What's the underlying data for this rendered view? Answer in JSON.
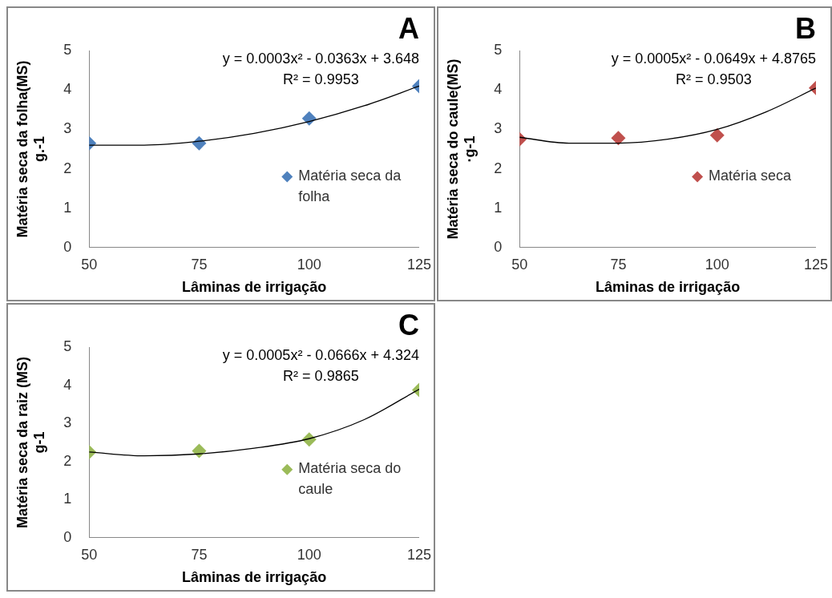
{
  "chart_data": [
    {
      "type": "scatter",
      "title": "A",
      "xlabel": "Lâminas de irrigação",
      "ylabel": "Matéria seca da folha(MS)\ng.-1",
      "xlim": [
        50,
        125
      ],
      "xticks": [
        50,
        75,
        100,
        125
      ],
      "ylim": [
        0,
        5
      ],
      "yticks": [
        0,
        1,
        2,
        3,
        4,
        5
      ],
      "grid": false,
      "legend": "right",
      "marker": "diamond",
      "annotations": [
        "y = 0.0003x² - 0.0363x + 3.648",
        "R² = 0.9953"
      ],
      "series": [
        {
          "name": "Matéria seca da folha",
          "color": "#4f81bd",
          "x": [
            50,
            75,
            100,
            125
          ],
          "values": [
            2.65,
            2.65,
            3.28,
            4.1
          ]
        },
        {
          "type": "line",
          "color": "#000000",
          "line_style": "solid",
          "marker": "none",
          "x": [
            50,
            62.5,
            75,
            87.5,
            100,
            112.5,
            125
          ],
          "values": [
            2.6,
            2.6,
            2.7,
            2.9,
            3.2,
            3.6,
            4.1
          ]
        }
      ]
    },
    {
      "type": "scatter",
      "title": "B",
      "xlabel": "Lâminas de irrigação",
      "ylabel": "Matéria seca do caule(MS)\n·g-1",
      "xlim": [
        50,
        125
      ],
      "xticks": [
        50,
        75,
        100,
        125
      ],
      "ylim": [
        0,
        5
      ],
      "yticks": [
        0,
        1,
        2,
        3,
        4,
        5
      ],
      "grid": false,
      "legend": "right",
      "marker": "diamond",
      "annotations": [
        "y = 0.0005x² - 0.0649x + 4.8765",
        "R² = 0.9503"
      ],
      "series": [
        {
          "name": "Matéria seca",
          "color": "#c0504d",
          "x": [
            50,
            75,
            100,
            125
          ],
          "values": [
            2.75,
            2.78,
            2.85,
            4.05
          ]
        },
        {
          "type": "line",
          "color": "#000000",
          "line_style": "solid",
          "marker": "none",
          "x": [
            50,
            62.5,
            75,
            87.5,
            100,
            112.5,
            125
          ],
          "values": [
            2.8,
            2.65,
            2.65,
            2.75,
            3.0,
            3.45,
            4.05
          ]
        }
      ]
    },
    {
      "type": "scatter",
      "title": "C",
      "xlabel": "Lâminas de irrigação",
      "ylabel": "Matéria seca da raiz (MS)\ng-1",
      "xlim": [
        50,
        125
      ],
      "xticks": [
        50,
        75,
        100,
        125
      ],
      "ylim": [
        0,
        5
      ],
      "yticks": [
        0,
        1,
        2,
        3,
        4,
        5
      ],
      "grid": false,
      "legend": "right",
      "marker": "diamond",
      "annotations": [
        "y = 0.0005x² - 0.0666x + 4.324",
        "R² = 0.9865"
      ],
      "series": [
        {
          "name": "Matéria seca do caule",
          "color": "#9bbb59",
          "x": [
            50,
            75,
            100,
            125
          ],
          "values": [
            2.25,
            2.28,
            2.58,
            3.88
          ]
        },
        {
          "type": "line",
          "color": "#000000",
          "line_style": "solid",
          "marker": "none",
          "x": [
            50,
            62.5,
            75,
            87.5,
            100,
            112.5,
            125
          ],
          "values": [
            2.25,
            2.15,
            2.2,
            2.35,
            2.6,
            3.1,
            3.9
          ]
        }
      ]
    }
  ]
}
